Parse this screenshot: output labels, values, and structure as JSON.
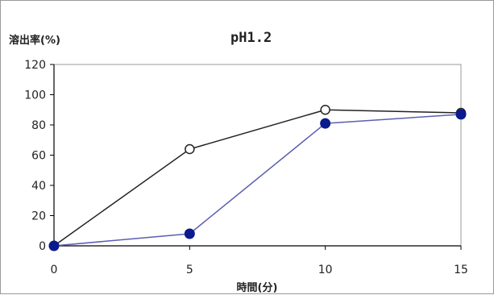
{
  "chart_data": {
    "type": "line",
    "title": "pH1.2",
    "xlabel": "時間(分)",
    "ylabel": "溶出率(%)",
    "x": [
      0,
      5,
      10,
      15
    ],
    "xticks": [
      "0",
      "5",
      "10",
      "15"
    ],
    "yticks": [
      "0",
      "20",
      "40",
      "60",
      "80",
      "100",
      "120"
    ],
    "xlim": [
      0,
      15
    ],
    "ylim": [
      0,
      120
    ],
    "grid": false,
    "legend": false,
    "series": [
      {
        "values": [
          0,
          64,
          90,
          88
        ],
        "color": "#222222",
        "marker": "open-circle"
      },
      {
        "values": [
          0,
          8,
          81,
          87
        ],
        "color": "#5b5fb0",
        "marker": "filled-circle",
        "marker_color": "#0b1a8c"
      }
    ]
  }
}
